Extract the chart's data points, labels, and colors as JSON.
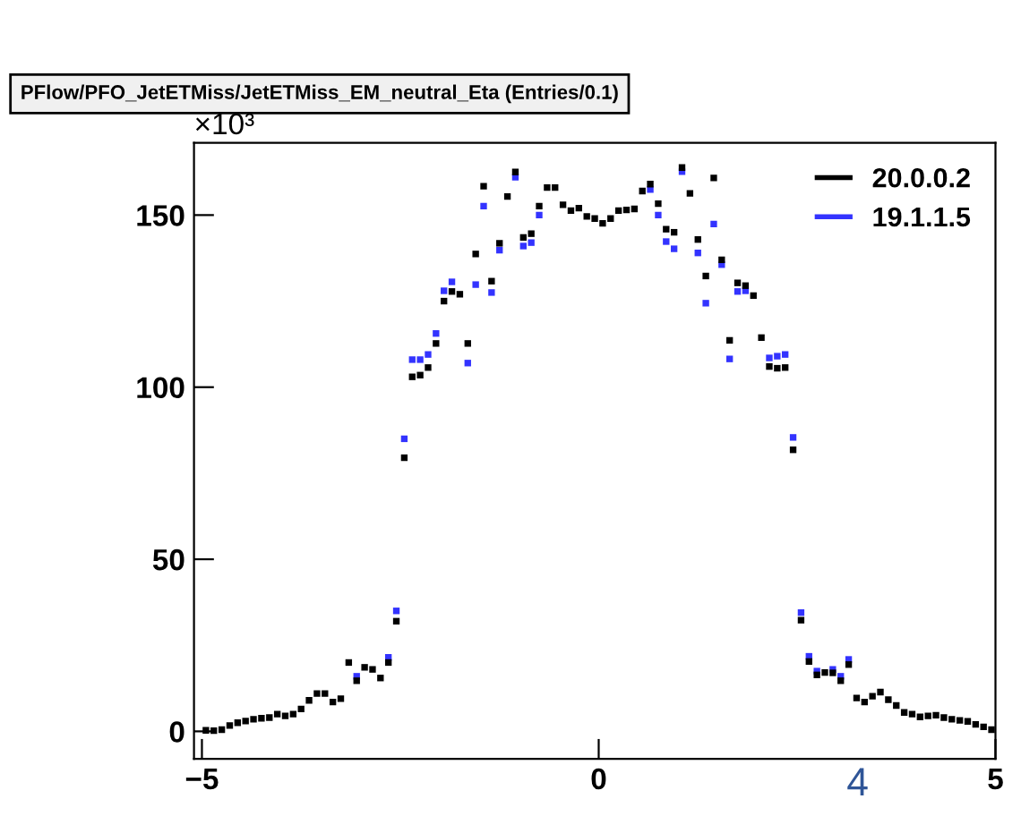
{
  "chart_data": {
    "type": "scatter",
    "title": "PFlow/PFO_JetETMiss/JetETMiss_EM_neutral_Eta (Entries/0.1)",
    "x": [
      -4.95,
      -4.85,
      -4.75,
      -4.65,
      -4.55,
      -4.45,
      -4.35,
      -4.25,
      -4.15,
      -4.05,
      -3.95,
      -3.85,
      -3.75,
      -3.65,
      -3.55,
      -3.45,
      -3.35,
      -3.25,
      -3.15,
      -3.05,
      -2.95,
      -2.85,
      -2.75,
      -2.65,
      -2.55,
      -2.45,
      -2.35,
      -2.25,
      -2.15,
      -2.05,
      -1.95,
      -1.85,
      -1.75,
      -1.65,
      -1.55,
      -1.45,
      -1.35,
      -1.25,
      -1.15,
      -1.05,
      -0.95,
      -0.85,
      -0.75,
      -0.65,
      -0.55,
      -0.45,
      -0.35,
      -0.25,
      -0.15,
      -0.05,
      0.05,
      0.15,
      0.25,
      0.35,
      0.45,
      0.55,
      0.65,
      0.75,
      0.85,
      0.95,
      1.05,
      1.15,
      1.25,
      1.35,
      1.45,
      1.55,
      1.65,
      1.75,
      1.85,
      1.95,
      2.05,
      2.15,
      2.25,
      2.35,
      2.45,
      2.55,
      2.65,
      2.75,
      2.85,
      2.95,
      3.05,
      3.15,
      3.25,
      3.35,
      3.45,
      3.55,
      3.65,
      3.75,
      3.85,
      3.95,
      4.05,
      4.15,
      4.25,
      4.35,
      4.45,
      4.55,
      4.65,
      4.75,
      4.85,
      4.95
    ],
    "marker": "square",
    "series": [
      {
        "name": "20.0.0.2",
        "color": "#000000",
        "values": [
          0.3,
          0.2,
          0.5,
          1.7,
          2.5,
          3,
          3.5,
          3.8,
          4,
          5,
          4.5,
          5,
          6.5,
          9,
          11,
          11,
          8.5,
          9.5,
          20,
          14.7,
          18.6,
          18,
          15.5,
          20,
          32,
          79.5,
          103,
          103.5,
          105.7,
          112.7,
          125,
          127.8,
          127,
          112.7,
          138.7,
          158.4,
          130.8,
          141.8,
          155.4,
          162.5,
          143.5,
          144.6,
          152.6,
          158,
          158,
          153,
          151.3,
          152,
          149.6,
          149,
          147.6,
          149,
          151.3,
          151.5,
          151.8,
          157,
          159,
          153.3,
          145.9,
          145,
          163.8,
          156.3,
          142.9,
          132.3,
          160.8,
          137,
          113.6,
          130.3,
          129.5,
          126.6,
          114.4,
          106,
          105.5,
          105.7,
          81.8,
          32.3,
          20.3,
          16.4,
          17.1,
          17,
          14.7,
          19.4,
          9.7,
          8.5,
          10.2,
          11.4,
          9.2,
          7.5,
          5.5,
          5,
          4.2,
          4.5,
          4.7,
          4,
          3.5,
          3.2,
          2.9,
          2,
          1.3,
          0.5
        ]
      },
      {
        "name": "19.1.1.5",
        "color": "#3333ff",
        "values": [
          null,
          null,
          null,
          null,
          null,
          null,
          null,
          null,
          null,
          null,
          null,
          null,
          null,
          null,
          null,
          null,
          null,
          null,
          null,
          16,
          null,
          null,
          null,
          21.5,
          35,
          85,
          108,
          108,
          109.5,
          115.6,
          128,
          130.6,
          null,
          107,
          129.8,
          152.6,
          127.5,
          139.8,
          null,
          161,
          141,
          142,
          150,
          null,
          null,
          null,
          null,
          null,
          null,
          null,
          null,
          null,
          null,
          null,
          null,
          null,
          157.4,
          150,
          142.3,
          140.2,
          162.6,
          null,
          139,
          124.4,
          147.4,
          135.6,
          108.2,
          127.8,
          128,
          null,
          null,
          108.5,
          109,
          109.5,
          85.4,
          34.5,
          21.8,
          17.5,
          null,
          18,
          16,
          20.9,
          null,
          null,
          null,
          null,
          null,
          null,
          null,
          null,
          null,
          null,
          null,
          null,
          null,
          null,
          null,
          null,
          null,
          null
        ]
      }
    ],
    "xlim": [
      -5.1,
      5.0
    ],
    "ylim": [
      -8,
      171
    ],
    "xticks": [
      {
        "value": -5,
        "label": "−5"
      },
      0,
      5
    ],
    "yticks": [
      0,
      50,
      100,
      150
    ],
    "annotations": [
      "×10³",
      "4"
    ],
    "legend": "top right",
    "grid": false
  }
}
